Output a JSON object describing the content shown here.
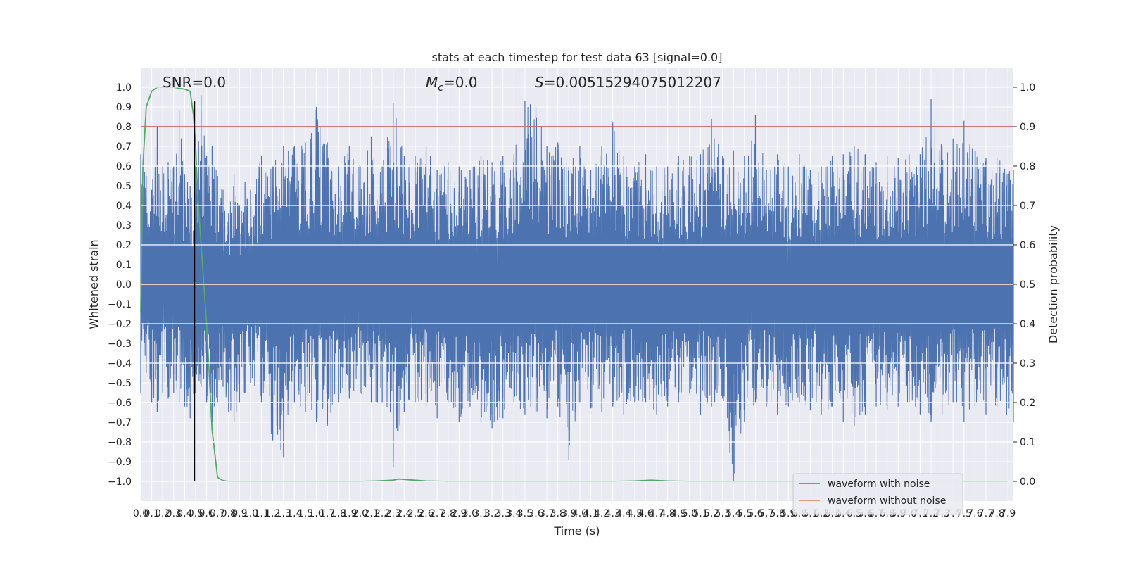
{
  "chart_data": {
    "type": "line",
    "title": "stats at each timestep for test data 63 [signal=0.0]",
    "xlabel": "Time (s)",
    "ylabel": "Whitened strain",
    "ylabel_right": "Detection probability",
    "xlim": [
      0.0,
      7.95
    ],
    "ylim": [
      -1.1,
      1.1
    ],
    "ylim_right": [
      -0.05,
      1.05
    ],
    "x_ticks": [
      "0.0",
      "0.1",
      "0.2",
      "0.3",
      "0.4",
      "0.5",
      "0.6",
      "0.7",
      "0.8",
      "0.9",
      "1.0",
      "1.1",
      "1.2",
      "1.3",
      "1.4",
      "1.5",
      "1.6",
      "1.7",
      "1.8",
      "1.9",
      "2.0",
      "2.1",
      "2.2",
      "2.3",
      "2.4",
      "2.5",
      "2.6",
      "2.7",
      "2.8",
      "2.9",
      "3.0",
      "3.1",
      "3.2",
      "3.3",
      "3.4",
      "3.5",
      "3.6",
      "3.7",
      "3.8",
      "3.9",
      "4.0",
      "4.1",
      "4.2",
      "4.3",
      "4.4",
      "4.5",
      "4.6",
      "4.7",
      "4.8",
      "4.9",
      "5.0",
      "5.1",
      "5.2",
      "5.3",
      "5.4",
      "5.5",
      "5.6",
      "5.7",
      "5.8",
      "5.9",
      "6.0",
      "6.1",
      "6.2",
      "6.3",
      "6.4",
      "6.5",
      "6.6",
      "6.7",
      "6.8",
      "6.9",
      "7.0",
      "7.1",
      "7.2",
      "7.3",
      "7.4",
      "7.5",
      "7.6",
      "7.7",
      "7.8",
      "7.9"
    ],
    "y_ticks": [
      "1.0",
      "0.9",
      "0.8",
      "0.7",
      "0.6",
      "0.5",
      "0.4",
      "0.3",
      "0.2",
      "0.1",
      "0.0",
      "-0.1",
      "-0.2",
      "-0.3",
      "-0.4",
      "-0.5",
      "-0.6",
      "-0.7",
      "-0.8",
      "-0.9",
      "-1.0"
    ],
    "y_ticks_right": [
      "1.0",
      "0.9",
      "0.8",
      "0.7",
      "0.6",
      "0.5",
      "0.4",
      "0.3",
      "0.2",
      "0.1",
      "0.0"
    ],
    "annotations": {
      "snr": "SNR=0.0",
      "mc_symbol": "M",
      "mc_sub": "c",
      "mc_value": "=0.0",
      "s_symbol": "S",
      "s_value": "=0.00515294075012207"
    },
    "series": [
      {
        "name": "waveform with noise",
        "axis": "left",
        "color": "#4c72b0",
        "envelope": {
          "x": [
            0.0,
            0.05,
            0.1,
            0.15,
            0.2,
            0.25,
            0.3,
            0.35,
            0.4,
            0.45,
            0.5,
            0.55,
            0.6,
            0.65,
            0.7,
            0.75,
            0.8,
            0.85,
            0.9,
            0.95,
            1.0,
            1.1,
            1.2,
            1.3,
            1.4,
            1.5,
            1.6,
            1.7,
            1.8,
            1.9,
            2.0,
            2.1,
            2.2,
            2.3,
            2.4,
            2.5,
            2.6,
            2.7,
            2.8,
            2.9,
            3.0,
            3.1,
            3.2,
            3.3,
            3.4,
            3.5,
            3.6,
            3.7,
            3.8,
            3.9,
            4.0,
            4.1,
            4.2,
            4.3,
            4.4,
            4.5,
            4.6,
            4.7,
            4.8,
            4.9,
            5.0,
            5.1,
            5.2,
            5.3,
            5.4,
            5.5,
            5.6,
            5.7,
            5.8,
            5.9,
            6.0,
            6.1,
            6.2,
            6.3,
            6.4,
            6.5,
            6.6,
            6.7,
            6.8,
            6.9,
            7.0,
            7.1,
            7.2,
            7.3,
            7.4,
            7.5,
            7.6,
            7.7,
            7.8,
            7.95
          ],
          "upper": [
            0.66,
            0.55,
            0.48,
            0.8,
            0.6,
            0.62,
            0.6,
            0.88,
            0.56,
            0.5,
            0.6,
            0.96,
            0.65,
            0.7,
            0.55,
            0.48,
            0.36,
            0.56,
            0.4,
            0.52,
            0.48,
            0.65,
            0.6,
            0.7,
            0.7,
            0.72,
            0.9,
            0.72,
            0.6,
            0.7,
            0.6,
            0.75,
            0.6,
            0.92,
            0.65,
            0.65,
            0.7,
            0.58,
            0.62,
            0.6,
            0.58,
            0.65,
            0.62,
            0.65,
            0.66,
            0.93,
            0.9,
            0.7,
            0.72,
            0.6,
            0.7,
            0.58,
            0.7,
            0.82,
            0.65,
            0.6,
            0.66,
            0.6,
            0.6,
            0.65,
            0.65,
            0.66,
            0.84,
            0.65,
            0.68,
            0.65,
            0.86,
            0.58,
            0.66,
            0.6,
            0.66,
            0.58,
            0.6,
            0.65,
            0.66,
            0.7,
            0.66,
            0.62,
            0.65,
            0.64,
            0.66,
            0.66,
            0.94,
            0.7,
            0.74,
            0.83,
            0.68,
            0.64,
            0.64,
            0.58
          ],
          "lower": [
            -0.55,
            -0.45,
            -0.6,
            -0.65,
            -0.55,
            -0.58,
            -0.55,
            -0.6,
            -0.62,
            -0.68,
            -0.55,
            -0.52,
            -0.6,
            -0.7,
            -0.6,
            -0.52,
            -0.65,
            -0.7,
            -0.6,
            -0.55,
            -0.5,
            -0.6,
            -0.79,
            -0.88,
            -0.6,
            -0.65,
            -0.7,
            -0.72,
            -0.6,
            -0.58,
            -0.55,
            -0.6,
            -0.6,
            -0.93,
            -0.65,
            -0.6,
            -0.62,
            -0.68,
            -0.6,
            -0.7,
            -0.62,
            -0.7,
            -0.73,
            -0.68,
            -0.6,
            -0.66,
            -0.65,
            -0.68,
            -0.62,
            -0.89,
            -0.6,
            -0.63,
            -0.65,
            -0.62,
            -0.66,
            -0.6,
            -0.6,
            -0.66,
            -0.62,
            -0.6,
            -0.55,
            -0.66,
            -0.62,
            -0.58,
            -1.0,
            -0.7,
            -0.6,
            -0.62,
            -0.66,
            -0.62,
            -0.6,
            -0.64,
            -0.66,
            -0.62,
            -0.7,
            -0.72,
            -0.66,
            -0.62,
            -0.64,
            -0.62,
            -0.6,
            -0.66,
            -0.7,
            -0.66,
            -0.6,
            -0.7,
            -0.62,
            -0.66,
            -0.62,
            -0.7
          ]
        }
      },
      {
        "name": "waveform without noise",
        "axis": "left",
        "color": "#dd8452",
        "x": [
          0.0,
          7.95
        ],
        "y": [
          0.0,
          0.0
        ]
      },
      {
        "name": "",
        "axis": "right",
        "color": "#55a868",
        "x": [
          0.0,
          0.02,
          0.05,
          0.1,
          0.15,
          0.2,
          0.3,
          0.4,
          0.45,
          0.48,
          0.5,
          0.52,
          0.55,
          0.6,
          0.65,
          0.7,
          0.75,
          0.8,
          1.0,
          2.0,
          2.15,
          2.3,
          2.35,
          2.45,
          2.6,
          2.8,
          3.0,
          4.0,
          4.3,
          4.5,
          4.65,
          4.8,
          5.0,
          6.0,
          7.0,
          7.9
        ],
        "y": [
          0.43,
          0.8,
          0.95,
          0.99,
          1.0,
          1.0,
          1.0,
          0.995,
          0.99,
          0.93,
          0.85,
          0.72,
          0.6,
          0.4,
          0.13,
          0.01,
          0.002,
          0.0,
          0.0,
          0.0,
          0.001,
          0.003,
          0.006,
          0.004,
          0.001,
          0.0,
          0.0,
          0.0,
          0.0,
          0.001,
          0.003,
          0.001,
          0.0,
          0.0,
          0.0,
          0.0
        ]
      }
    ],
    "hlines": [
      {
        "axis": "right",
        "y": 0.9,
        "color": "#c44e52"
      }
    ],
    "vlines": [
      {
        "x": 0.49,
        "ymin": -1.0,
        "ymax": 0.93,
        "color": "#000000"
      }
    ],
    "grid": true,
    "legend_placement": "lower right",
    "legend": [
      "waveform with noise",
      "waveform without noise"
    ]
  }
}
